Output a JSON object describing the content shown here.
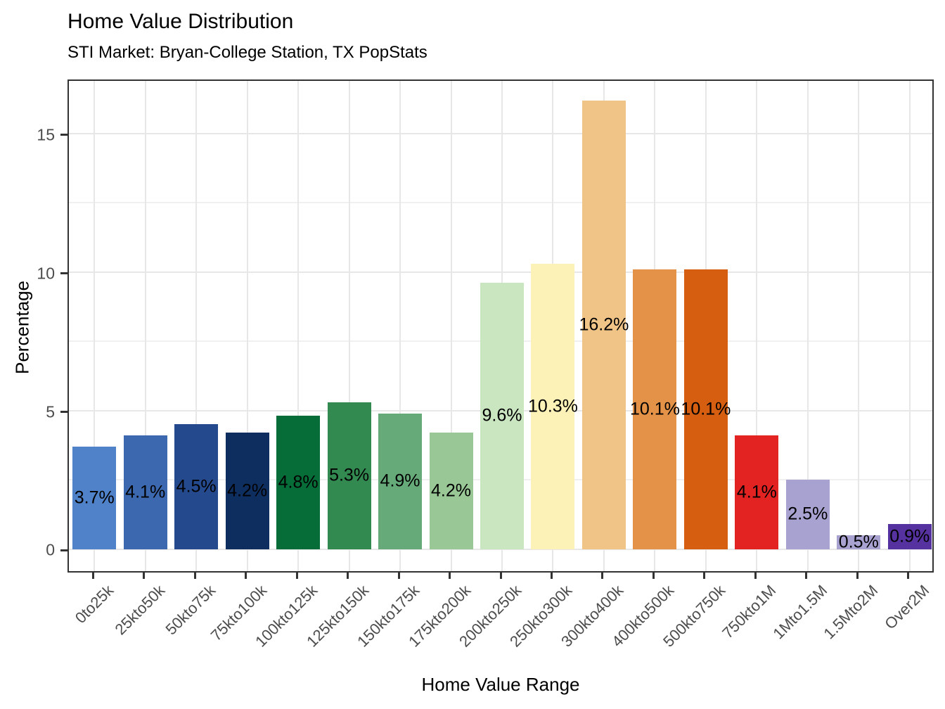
{
  "chart_data": {
    "type": "bar",
    "title": "Home Value Distribution",
    "subtitle": "STI Market: Bryan-College Station, TX PopStats",
    "xlabel": "Home Value Range",
    "ylabel": "Percentage",
    "categories": [
      "0to25k",
      "25kto50k",
      "50kto75k",
      "75kto100k",
      "100kto125k",
      "125kto150k",
      "150kto175k",
      "175kto200k",
      "200kto250k",
      "250kto300k",
      "300kto400k",
      "400kto500k",
      "500kto750k",
      "750kto1M",
      "1Mto1.5M",
      "1.5Mto2M",
      "Over2M"
    ],
    "values": [
      3.7,
      4.1,
      4.5,
      4.2,
      4.8,
      5.3,
      4.9,
      4.2,
      9.6,
      10.3,
      16.2,
      10.1,
      10.1,
      4.1,
      2.5,
      0.5,
      0.9
    ],
    "value_labels": [
      "3.7%",
      "4.1%",
      "4.5%",
      "4.2%",
      "4.8%",
      "5.3%",
      "4.9%",
      "4.2%",
      "9.6%",
      "10.3%",
      "16.2%",
      "10.1%",
      "10.1%",
      "4.1%",
      "2.5%",
      "0.5%",
      "0.9%"
    ],
    "bar_colors": [
      "#4f82c8",
      "#3b68ae",
      "#24498d",
      "#0f2e60",
      "#076d38",
      "#338a51",
      "#65aa78",
      "#99c795",
      "#c9e6c0",
      "#fcf2b8",
      "#f0c487",
      "#e49247",
      "#d55e10",
      "#e32322",
      "#a7a2d0",
      "#a7a2d0",
      "#5632a0"
    ],
    "ylim": [
      0,
      17
    ],
    "yticks_major": [
      0,
      5,
      10,
      15
    ],
    "yticks_minor": [
      2.5,
      7.5,
      12.5
    ],
    "grid": "on",
    "legend": "none",
    "colors": {
      "grid_major": "#e7e7e7",
      "grid_minor": "#f0f0f0",
      "panel_border": "#333333",
      "axis_text": "#4d4d4d",
      "tick_mark": "#333333"
    }
  }
}
